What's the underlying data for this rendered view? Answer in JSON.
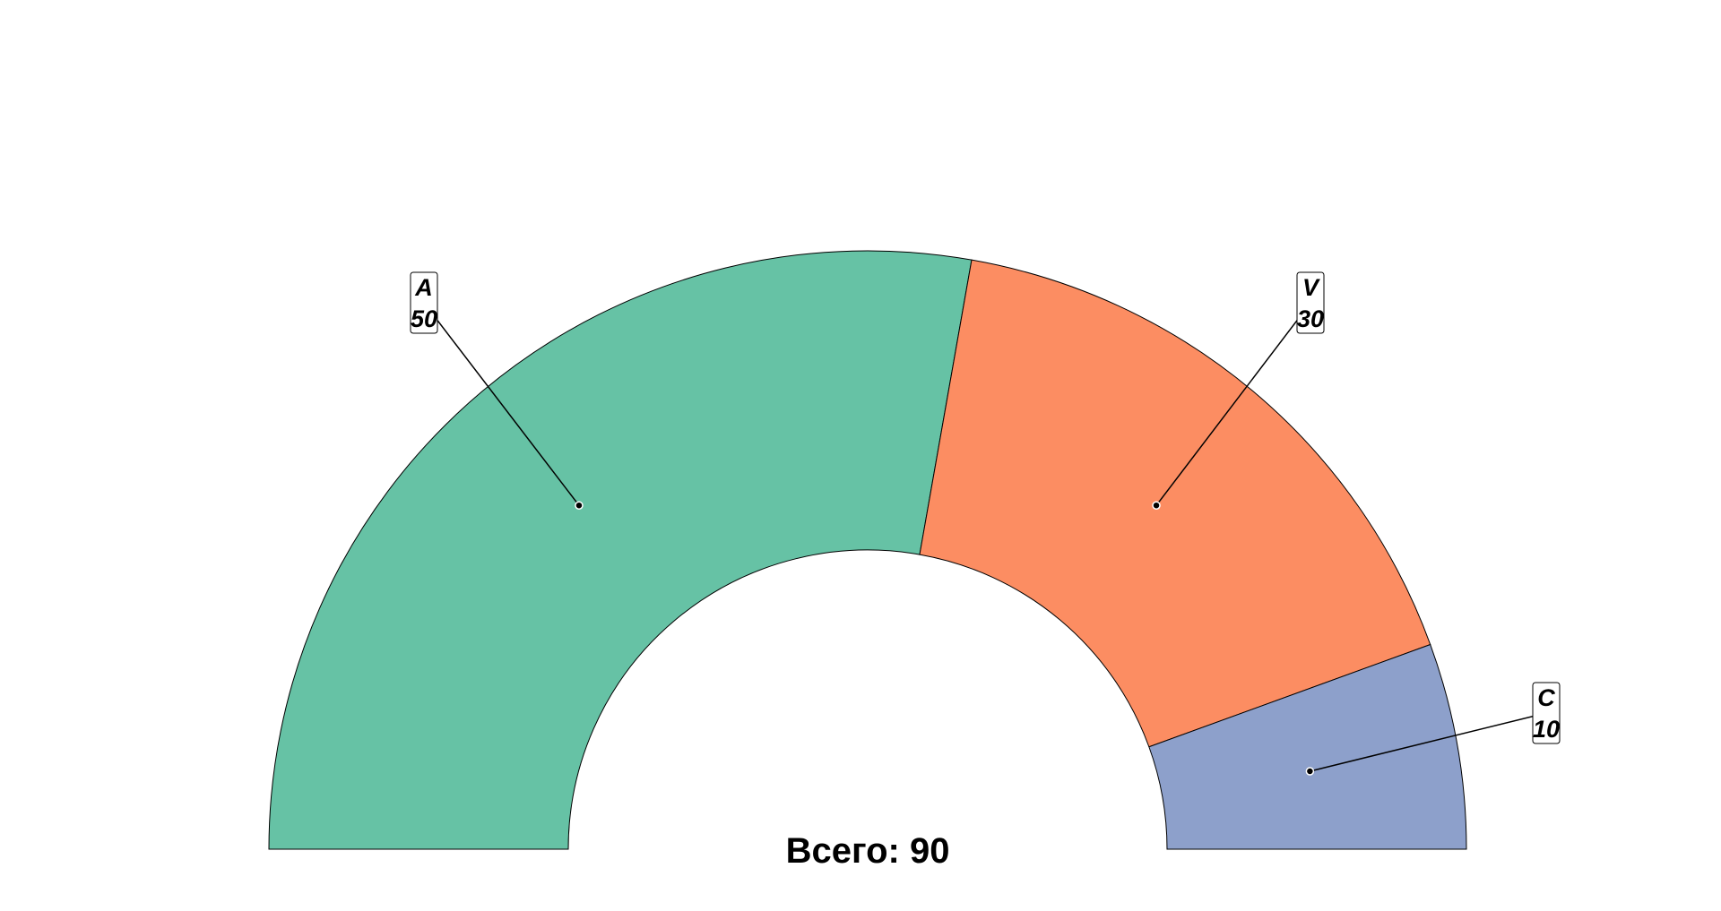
{
  "chart_data": {
    "type": "semi-donut",
    "slices": [
      {
        "label": "A",
        "value": 50,
        "color": "#66c2a5"
      },
      {
        "label": "V",
        "value": 30,
        "color": "#fc8d62"
      },
      {
        "label": "C",
        "value": 10,
        "color": "#8da0cb"
      }
    ],
    "total_label": "Всего: 90",
    "legend": "none",
    "grid": false
  }
}
